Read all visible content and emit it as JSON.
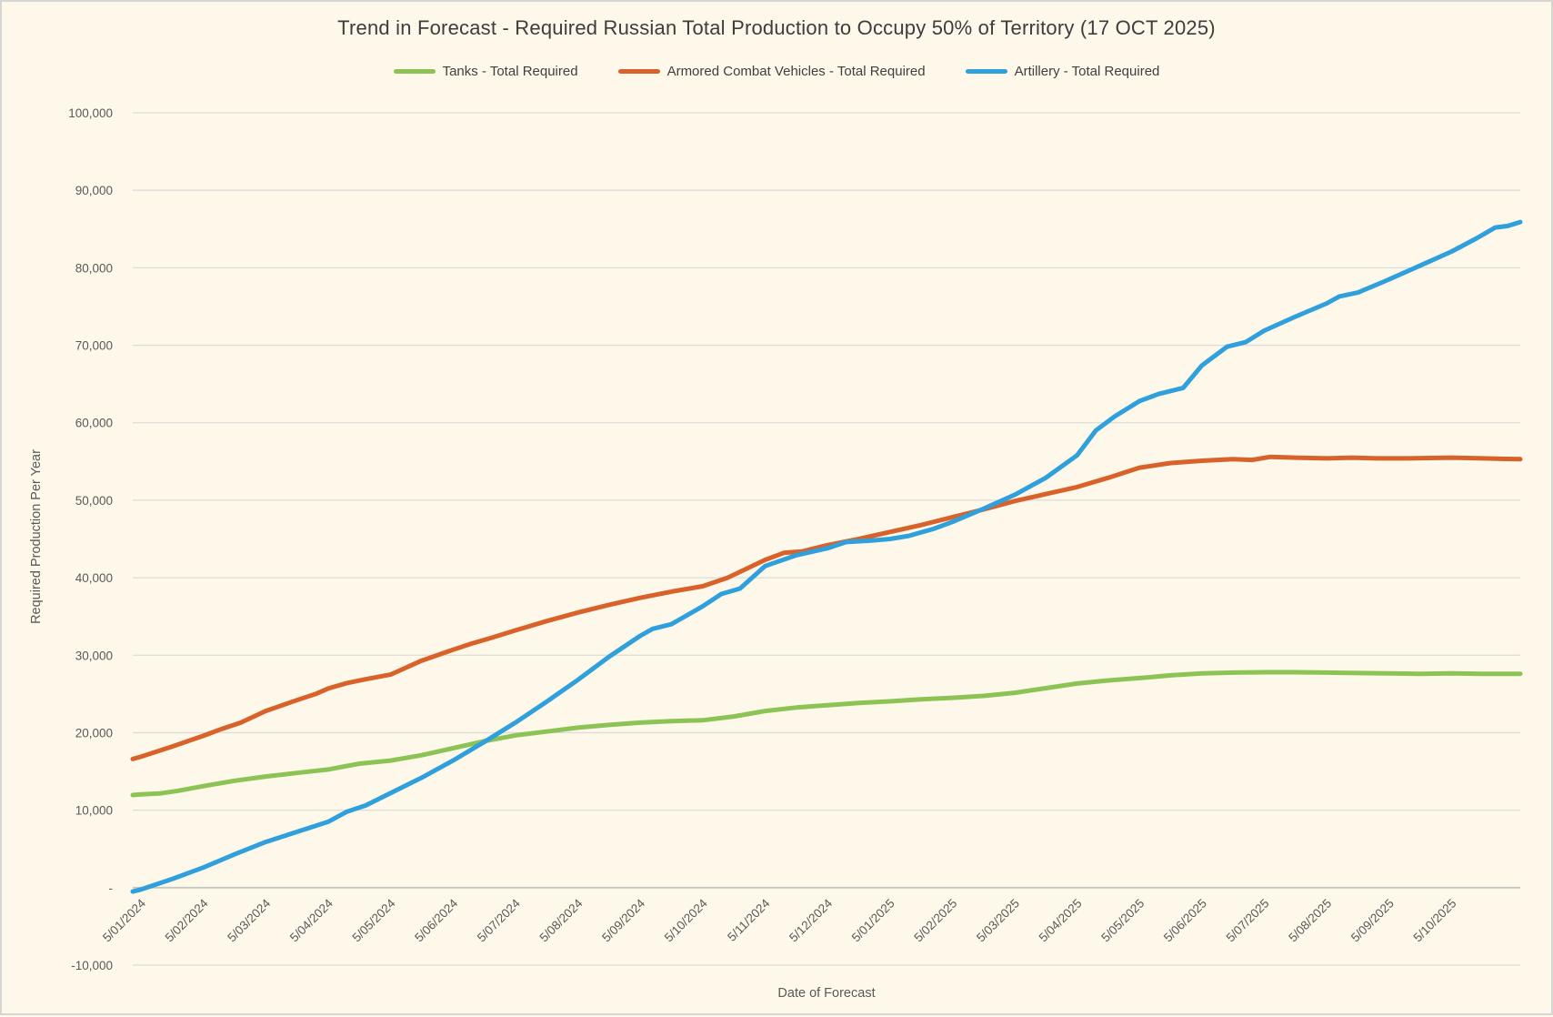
{
  "title": "Trend in Forecast - Required Russian Total Production to Occupy 50% of Territory (17 OCT 2025)",
  "colors": {
    "background": "#FDF8EA",
    "gridline": "#DCDCD8",
    "zero_axis": "#C6C6C2",
    "tick_text": "#595959",
    "title_text": "#3D3D3D"
  },
  "chart_data": {
    "type": "line",
    "title": "Trend in Forecast - Required Russian Total Production to Occupy 50% of Territory (17 OCT 2025)",
    "xlabel": "Date of Forecast",
    "ylabel": "Required Production Per Year",
    "legend_position": "top",
    "grid": true,
    "x_range": [
      -0.13,
      22.1
    ],
    "y_range": [
      -10000,
      100000
    ],
    "x_tick_labels": [
      "5/01/2024",
      "5/02/2024",
      "5/03/2024",
      "5/04/2024",
      "5/05/2024",
      "5/06/2024",
      "5/07/2024",
      "5/08/2024",
      "5/09/2024",
      "5/10/2024",
      "5/11/2024",
      "5/12/2024",
      "5/01/2025",
      "5/02/2025",
      "5/03/2025",
      "5/04/2025",
      "5/05/2025",
      "5/06/2025",
      "5/07/2025",
      "5/08/2025",
      "5/09/2025",
      "5/10/2025"
    ],
    "y_ticks": [
      {
        "value": 100000,
        "label": "100,000"
      },
      {
        "value": 90000,
        "label": "90,000"
      },
      {
        "value": 80000,
        "label": "80,000"
      },
      {
        "value": 70000,
        "label": "70,000"
      },
      {
        "value": 60000,
        "label": "60,000"
      },
      {
        "value": 50000,
        "label": "50,000"
      },
      {
        "value": 40000,
        "label": "40,000"
      },
      {
        "value": 30000,
        "label": "30,000"
      },
      {
        "value": 20000,
        "label": "20,000"
      },
      {
        "value": 10000,
        "label": "10,000"
      },
      {
        "value": 0,
        "label": "-"
      },
      {
        "value": -10000,
        "label": "-10,000"
      }
    ],
    "series": [
      {
        "key": "tanks",
        "name": "Tanks - Total Required",
        "color": "#8DC355",
        "points": [
          [
            -0.13,
            11950
          ],
          [
            0,
            12050
          ],
          [
            0.3,
            12150
          ],
          [
            0.6,
            12500
          ],
          [
            1,
            13100
          ],
          [
            1.5,
            13800
          ],
          [
            2,
            14350
          ],
          [
            2.5,
            14800
          ],
          [
            3,
            15250
          ],
          [
            3.5,
            16000
          ],
          [
            4,
            16400
          ],
          [
            4.5,
            17100
          ],
          [
            5,
            18000
          ],
          [
            5.5,
            18900
          ],
          [
            6,
            19650
          ],
          [
            6.5,
            20150
          ],
          [
            7,
            20650
          ],
          [
            7.5,
            21000
          ],
          [
            8,
            21300
          ],
          [
            8.5,
            21500
          ],
          [
            9,
            21600
          ],
          [
            9.5,
            22100
          ],
          [
            10,
            22800
          ],
          [
            10.5,
            23250
          ],
          [
            11,
            23550
          ],
          [
            11.5,
            23850
          ],
          [
            12,
            24050
          ],
          [
            12.5,
            24300
          ],
          [
            13,
            24500
          ],
          [
            13.5,
            24750
          ],
          [
            14,
            25150
          ],
          [
            14.5,
            25750
          ],
          [
            15,
            26350
          ],
          [
            15.5,
            26750
          ],
          [
            16,
            27050
          ],
          [
            16.5,
            27400
          ],
          [
            17,
            27650
          ],
          [
            17.5,
            27750
          ],
          [
            18,
            27800
          ],
          [
            18.5,
            27800
          ],
          [
            19,
            27750
          ],
          [
            19.5,
            27700
          ],
          [
            20,
            27650
          ],
          [
            20.5,
            27600
          ],
          [
            21,
            27650
          ],
          [
            21.5,
            27600
          ],
          [
            22.1,
            27600
          ]
        ]
      },
      {
        "key": "armored-combat-vehicles",
        "name": "Armored Combat Vehicles - Total Required",
        "color": "#D9622B",
        "points": [
          [
            -0.13,
            16600
          ],
          [
            0,
            16900
          ],
          [
            0.5,
            18200
          ],
          [
            1,
            19600
          ],
          [
            1.3,
            20500
          ],
          [
            1.6,
            21300
          ],
          [
            2,
            22800
          ],
          [
            2.5,
            24200
          ],
          [
            2.8,
            25000
          ],
          [
            3,
            25700
          ],
          [
            3.3,
            26400
          ],
          [
            3.6,
            26900
          ],
          [
            4,
            27500
          ],
          [
            4.5,
            29300
          ],
          [
            5,
            30700
          ],
          [
            5.3,
            31500
          ],
          [
            5.6,
            32200
          ],
          [
            6,
            33200
          ],
          [
            6.5,
            34400
          ],
          [
            7,
            35500
          ],
          [
            7.5,
            36500
          ],
          [
            8,
            37400
          ],
          [
            8.5,
            38200
          ],
          [
            9,
            38900
          ],
          [
            9.4,
            40000
          ],
          [
            10,
            42300
          ],
          [
            10.3,
            43200
          ],
          [
            10.6,
            43400
          ],
          [
            11,
            44200
          ],
          [
            11.5,
            45000
          ],
          [
            12,
            45900
          ],
          [
            12.5,
            46800
          ],
          [
            13,
            47800
          ],
          [
            13.5,
            48800
          ],
          [
            14,
            49900
          ],
          [
            14.5,
            50800
          ],
          [
            15,
            51700
          ],
          [
            15.5,
            52900
          ],
          [
            16,
            54200
          ],
          [
            16.5,
            54800
          ],
          [
            17,
            55100
          ],
          [
            17.5,
            55300
          ],
          [
            17.8,
            55200
          ],
          [
            18.1,
            55600
          ],
          [
            18.5,
            55500
          ],
          [
            19,
            55400
          ],
          [
            19.4,
            55500
          ],
          [
            19.8,
            55400
          ],
          [
            20.3,
            55400
          ],
          [
            21,
            55500
          ],
          [
            21.5,
            55400
          ],
          [
            22.1,
            55300
          ]
        ]
      },
      {
        "key": "artillery",
        "name": "Artillery - Total Required",
        "color": "#30A0DC",
        "points": [
          [
            -0.13,
            -500
          ],
          [
            0,
            -250
          ],
          [
            0.5,
            1100
          ],
          [
            1,
            2600
          ],
          [
            1.5,
            4300
          ],
          [
            2,
            5900
          ],
          [
            2.5,
            7200
          ],
          [
            3,
            8500
          ],
          [
            3.3,
            9800
          ],
          [
            3.6,
            10600
          ],
          [
            4,
            12200
          ],
          [
            4.5,
            14200
          ],
          [
            5,
            16400
          ],
          [
            5.5,
            18800
          ],
          [
            6,
            21300
          ],
          [
            6.5,
            24000
          ],
          [
            7,
            26800
          ],
          [
            7.5,
            29800
          ],
          [
            8,
            32500
          ],
          [
            8.2,
            33400
          ],
          [
            8.5,
            34000
          ],
          [
            9,
            36300
          ],
          [
            9.3,
            37900
          ],
          [
            9.6,
            38600
          ],
          [
            10,
            41500
          ],
          [
            10.5,
            42900
          ],
          [
            11,
            43800
          ],
          [
            11.3,
            44600
          ],
          [
            11.7,
            44800
          ],
          [
            12,
            45000
          ],
          [
            12.3,
            45400
          ],
          [
            12.7,
            46300
          ],
          [
            13,
            47200
          ],
          [
            13.5,
            48900
          ],
          [
            14,
            50700
          ],
          [
            14.5,
            52900
          ],
          [
            15,
            55800
          ],
          [
            15.3,
            59000
          ],
          [
            15.6,
            60800
          ],
          [
            16,
            62800
          ],
          [
            16.3,
            63700
          ],
          [
            16.7,
            64500
          ],
          [
            17,
            67400
          ],
          [
            17.4,
            69800
          ],
          [
            17.7,
            70400
          ],
          [
            18,
            71900
          ],
          [
            18.5,
            73700
          ],
          [
            19,
            75400
          ],
          [
            19.2,
            76300
          ],
          [
            19.5,
            76800
          ],
          [
            20,
            78500
          ],
          [
            20.5,
            80300
          ],
          [
            21,
            82100
          ],
          [
            21.4,
            83800
          ],
          [
            21.7,
            85200
          ],
          [
            21.9,
            85400
          ],
          [
            22.1,
            85900
          ]
        ]
      }
    ]
  }
}
